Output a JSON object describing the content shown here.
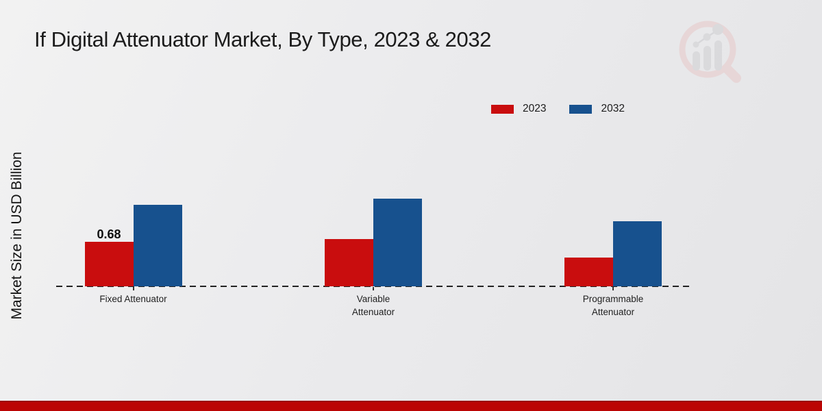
{
  "header": {
    "title": "If Digital Attenuator Market, By Type, 2023 & 2032"
  },
  "branding": {
    "logo_icon": "magnifier-bar-chart-watermark"
  },
  "footer": {
    "band_color": "#bb0504"
  },
  "chart_data": {
    "type": "bar",
    "title": "If Digital Attenuator Market, By Type, 2023 & 2032",
    "categories": [
      "Fixed Attenuator",
      "Variable Attenuator",
      "Programmable Attenuator"
    ],
    "series": [
      {
        "name": "2023",
        "color": "#c90d0e",
        "values": [
          0.68,
          0.72,
          0.44
        ],
        "labels": [
          "0.68",
          null,
          null
        ]
      },
      {
        "name": "2032",
        "color": "#17518e",
        "values": [
          1.24,
          1.34,
          0.99
        ],
        "labels": [
          null,
          null,
          null
        ]
      }
    ],
    "xlabel": "",
    "ylabel": "Market Size in USD Billion",
    "ylim": [
      0,
      1.5
    ],
    "grid": false,
    "legend_position": "top-right",
    "baseline_style": "dashed",
    "bar_value_labels_visible": [
      "0.68"
    ]
  }
}
